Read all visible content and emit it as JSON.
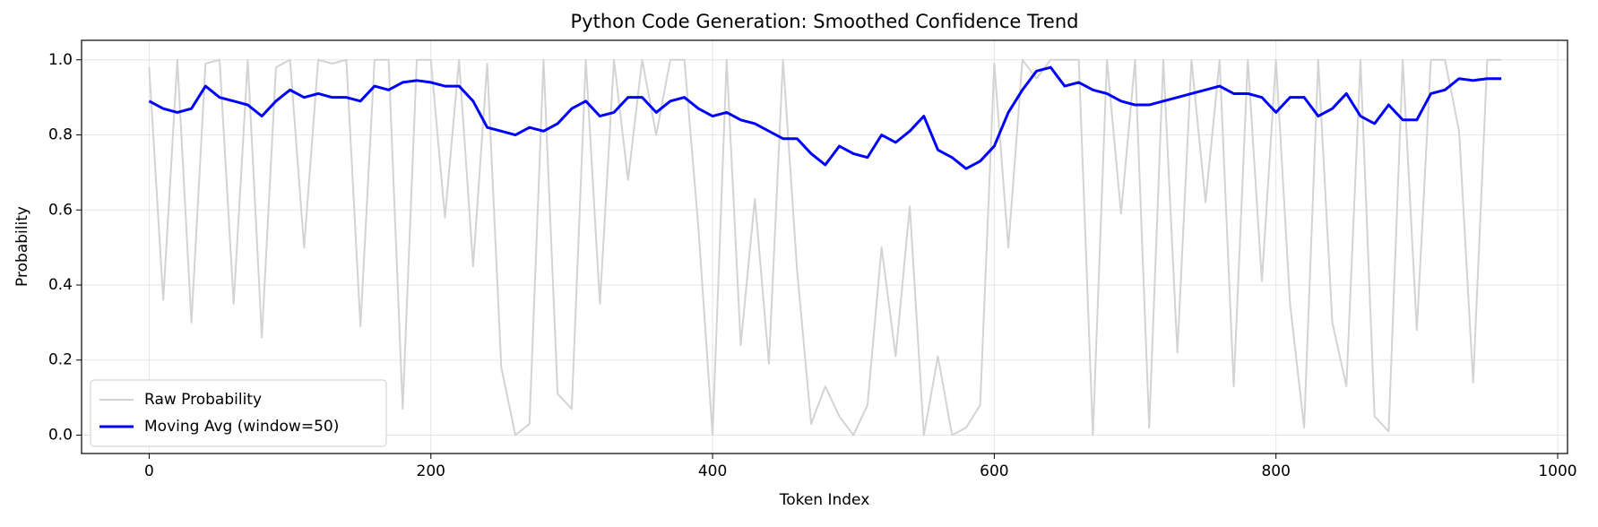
{
  "chart_data": {
    "type": "line",
    "title": "Python Code Generation: Smoothed Confidence Trend",
    "x_label": "Token Index",
    "y_label": "Probability",
    "x": [
      0,
      10,
      20,
      30,
      40,
      50,
      60,
      70,
      80,
      90,
      100,
      110,
      120,
      130,
      140,
      150,
      160,
      170,
      180,
      190,
      200,
      210,
      220,
      230,
      240,
      250,
      260,
      270,
      280,
      290,
      300,
      310,
      320,
      330,
      340,
      350,
      360,
      370,
      380,
      390,
      400,
      410,
      420,
      430,
      440,
      450,
      460,
      470,
      480,
      490,
      500,
      510,
      520,
      530,
      540,
      550,
      560,
      570,
      580,
      590,
      600,
      610,
      620,
      630,
      640,
      650,
      660,
      670,
      680,
      690,
      700,
      710,
      720,
      730,
      740,
      750,
      760,
      770,
      780,
      790,
      800,
      810,
      820,
      830,
      840,
      850,
      860,
      870,
      880,
      890,
      900,
      910,
      920,
      930,
      940,
      950,
      960
    ],
    "series": [
      {
        "name": "Raw Probability",
        "color": "#d3d3d3",
        "values": [
          0.98,
          0.36,
          1.0,
          0.3,
          0.99,
          1.0,
          0.35,
          1.0,
          0.26,
          0.98,
          1.0,
          0.5,
          1.0,
          0.99,
          1.0,
          0.29,
          1.0,
          1.0,
          0.07,
          1.0,
          1.0,
          0.58,
          1.0,
          0.45,
          0.99,
          0.18,
          0.0,
          0.03,
          1.0,
          0.11,
          0.07,
          1.0,
          0.35,
          1.0,
          0.68,
          1.0,
          0.8,
          1.0,
          1.0,
          0.55,
          0.0,
          1.0,
          0.24,
          0.63,
          0.19,
          1.0,
          0.44,
          0.03,
          0.13,
          0.05,
          0.0,
          0.08,
          0.5,
          0.21,
          0.61,
          0.0,
          0.21,
          0.0,
          0.02,
          0.08,
          0.99,
          0.5,
          1.0,
          0.95,
          1.0,
          1.0,
          1.0,
          0.0,
          1.0,
          0.59,
          1.0,
          0.02,
          1.0,
          0.22,
          1.0,
          0.62,
          1.0,
          0.13,
          1.0,
          0.41,
          1.0,
          0.35,
          0.02,
          1.0,
          0.3,
          0.13,
          1.0,
          0.05,
          0.01,
          1.0,
          0.28,
          1.0,
          1.0,
          0.81,
          0.14,
          1.0,
          1.0
        ]
      },
      {
        "name": "Moving Avg (window=50)",
        "color": "#0000ff",
        "values": [
          0.89,
          0.87,
          0.86,
          0.87,
          0.93,
          0.9,
          0.89,
          0.88,
          0.85,
          0.89,
          0.92,
          0.9,
          0.91,
          0.9,
          0.9,
          0.89,
          0.93,
          0.92,
          0.94,
          0.945,
          0.94,
          0.93,
          0.93,
          0.89,
          0.82,
          0.81,
          0.8,
          0.82,
          0.81,
          0.83,
          0.87,
          0.89,
          0.85,
          0.86,
          0.9,
          0.9,
          0.86,
          0.89,
          0.9,
          0.87,
          0.85,
          0.86,
          0.84,
          0.83,
          0.81,
          0.79,
          0.79,
          0.75,
          0.72,
          0.77,
          0.75,
          0.74,
          0.8,
          0.78,
          0.81,
          0.85,
          0.76,
          0.74,
          0.71,
          0.73,
          0.77,
          0.86,
          0.92,
          0.97,
          0.98,
          0.93,
          0.94,
          0.92,
          0.91,
          0.89,
          0.88,
          0.88,
          0.89,
          0.9,
          0.91,
          0.92,
          0.93,
          0.91,
          0.91,
          0.9,
          0.86,
          0.9,
          0.9,
          0.85,
          0.87,
          0.91,
          0.85,
          0.83,
          0.88,
          0.84,
          0.84,
          0.91,
          0.92,
          0.95,
          0.945,
          0.95,
          0.95
        ]
      }
    ],
    "xlim": [
      -48,
      1007
    ],
    "ylim": [
      -0.049,
      1.052
    ],
    "xticks": [
      0,
      200,
      400,
      600,
      800,
      1000
    ],
    "yticks": [
      {
        "value": 0,
        "label": "0.0"
      },
      0.2,
      0.4,
      0.6,
      0.8,
      {
        "value": 1,
        "label": "1.0"
      }
    ],
    "grid": true,
    "legend": "lower left"
  }
}
